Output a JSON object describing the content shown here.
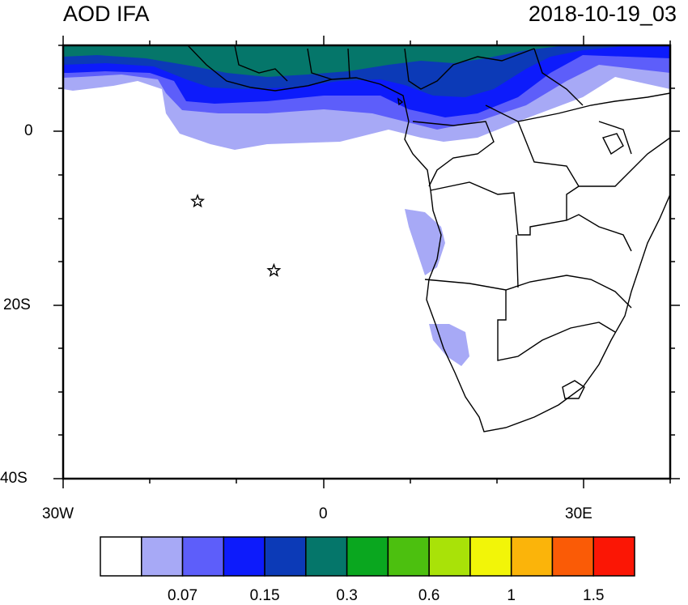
{
  "title_left": "AOD IFA",
  "title_right": "2018-10-19_03",
  "map": {
    "lon_range": [
      -30,
      40
    ],
    "lat_range": [
      -40,
      10
    ],
    "x_tick_labels": [
      "30W",
      "0",
      "30E"
    ],
    "y_tick_labels": [
      "0",
      "20S",
      "40S"
    ],
    "markers": [
      {
        "lon": -14.5,
        "lat": -8.0,
        "symbol": "star"
      },
      {
        "lon": -5.7,
        "lat": -16.0,
        "symbol": "star"
      }
    ]
  },
  "colorbar": {
    "colors": [
      "#ffffff",
      "#a7a9f6",
      "#5d5efa",
      "#0d1bfb",
      "#0c3ab7",
      "#05766a",
      "#0aa71f",
      "#4cc00f",
      "#a9e208",
      "#f2f508",
      "#fbb40a",
      "#fa5b06",
      "#fb1605"
    ],
    "labels": [
      "0.07",
      "0.15",
      "0.3",
      "0.6",
      "1",
      "1.5"
    ]
  }
}
